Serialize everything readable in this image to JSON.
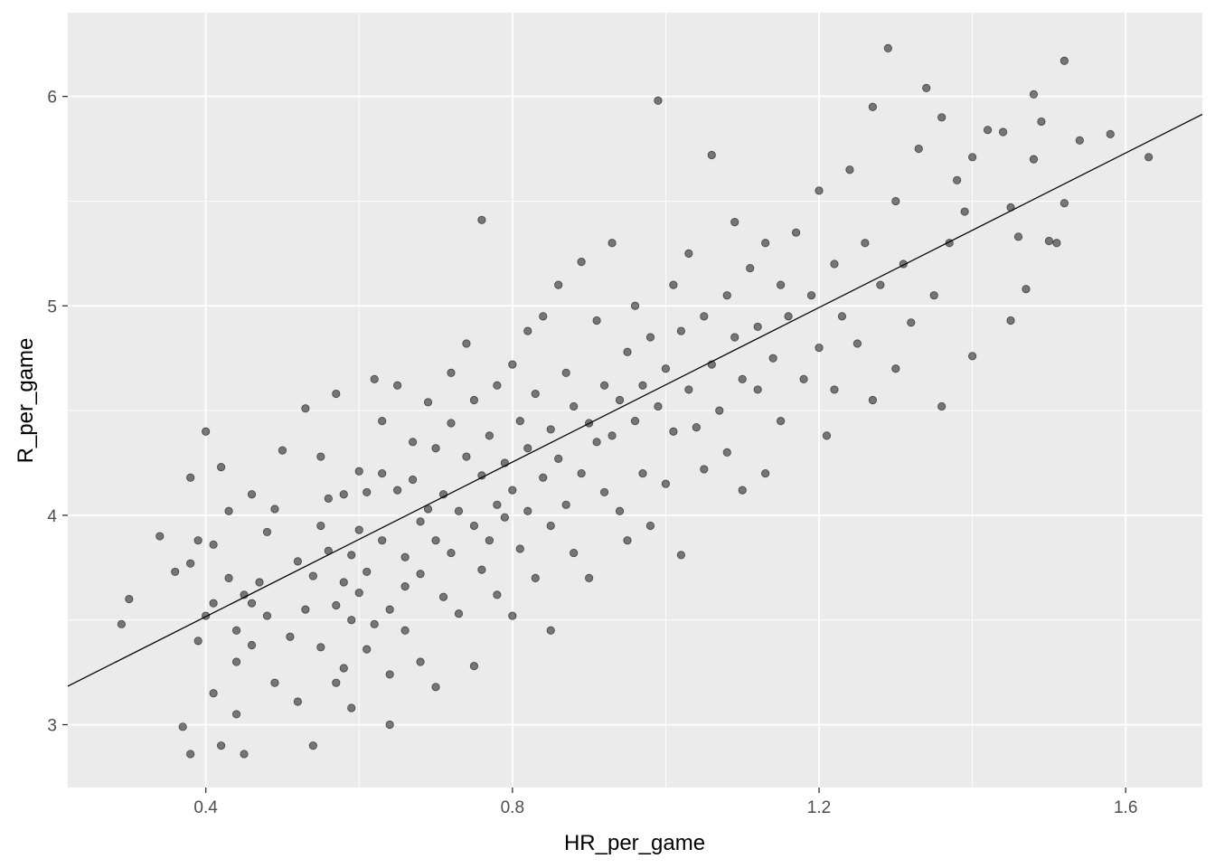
{
  "chart_data": {
    "type": "scatter",
    "title": "",
    "xlabel": "HR_per_game",
    "ylabel": "R_per_game",
    "xlim": [
      0.22,
      1.7
    ],
    "ylim": [
      2.7,
      6.4
    ],
    "x_ticks": [
      0.4,
      0.8,
      1.2,
      1.6
    ],
    "x_tick_labels": [
      "0.4",
      "0.8",
      "1.2",
      "1.6"
    ],
    "y_ticks": [
      3,
      4,
      5,
      6
    ],
    "y_tick_labels": [
      "3",
      "4",
      "5",
      "6"
    ],
    "grid": true,
    "legend": "none",
    "colors": {
      "panel_background": "#EBEBEB",
      "grid": "#FFFFFF",
      "point_fill": "#000000",
      "point_opacity": 0.5,
      "regression_line": "#000000"
    },
    "regression_line": {
      "intercept": 2.778,
      "slope": 1.845
    },
    "series": [
      {
        "points": [
          [
            0.29,
            3.48
          ],
          [
            0.3,
            3.6
          ],
          [
            0.34,
            3.9
          ],
          [
            0.36,
            3.73
          ],
          [
            0.37,
            2.99
          ],
          [
            0.38,
            3.77
          ],
          [
            0.38,
            4.18
          ],
          [
            0.38,
            2.86
          ],
          [
            0.39,
            3.88
          ],
          [
            0.39,
            3.4
          ],
          [
            0.4,
            3.52
          ],
          [
            0.4,
            4.4
          ],
          [
            0.41,
            3.86
          ],
          [
            0.41,
            3.58
          ],
          [
            0.41,
            3.15
          ],
          [
            0.42,
            4.23
          ],
          [
            0.42,
            2.9
          ],
          [
            0.43,
            4.02
          ],
          [
            0.43,
            3.7
          ],
          [
            0.44,
            3.45
          ],
          [
            0.44,
            3.3
          ],
          [
            0.44,
            3.05
          ],
          [
            0.45,
            3.62
          ],
          [
            0.45,
            2.86
          ],
          [
            0.46,
            4.1
          ],
          [
            0.46,
            3.58
          ],
          [
            0.46,
            3.38
          ],
          [
            0.47,
            3.68
          ],
          [
            0.48,
            3.52
          ],
          [
            0.48,
            3.92
          ],
          [
            0.49,
            4.03
          ],
          [
            0.49,
            3.2
          ],
          [
            0.5,
            4.31
          ],
          [
            0.51,
            3.42
          ],
          [
            0.52,
            3.78
          ],
          [
            0.52,
            3.11
          ],
          [
            0.53,
            4.51
          ],
          [
            0.53,
            3.55
          ],
          [
            0.54,
            3.71
          ],
          [
            0.54,
            2.9
          ],
          [
            0.55,
            4.28
          ],
          [
            0.55,
            3.95
          ],
          [
            0.55,
            3.37
          ],
          [
            0.56,
            4.08
          ],
          [
            0.56,
            3.83
          ],
          [
            0.57,
            3.57
          ],
          [
            0.57,
            4.58
          ],
          [
            0.57,
            3.2
          ],
          [
            0.58,
            4.1
          ],
          [
            0.58,
            3.68
          ],
          [
            0.58,
            3.27
          ],
          [
            0.59,
            3.81
          ],
          [
            0.59,
            3.5
          ],
          [
            0.59,
            3.08
          ],
          [
            0.6,
            4.21
          ],
          [
            0.6,
            3.93
          ],
          [
            0.6,
            3.63
          ],
          [
            0.61,
            4.11
          ],
          [
            0.61,
            3.73
          ],
          [
            0.61,
            3.36
          ],
          [
            0.62,
            4.65
          ],
          [
            0.62,
            3.48
          ],
          [
            0.63,
            4.45
          ],
          [
            0.63,
            4.2
          ],
          [
            0.63,
            3.88
          ],
          [
            0.64,
            3.55
          ],
          [
            0.64,
            3.24
          ],
          [
            0.64,
            3.0
          ],
          [
            0.65,
            4.62
          ],
          [
            0.65,
            4.12
          ],
          [
            0.66,
            3.8
          ],
          [
            0.66,
            3.66
          ],
          [
            0.66,
            3.45
          ],
          [
            0.67,
            4.35
          ],
          [
            0.67,
            4.17
          ],
          [
            0.68,
            3.97
          ],
          [
            0.68,
            3.72
          ],
          [
            0.68,
            3.3
          ],
          [
            0.69,
            4.54
          ],
          [
            0.69,
            4.03
          ],
          [
            0.7,
            4.32
          ],
          [
            0.7,
            3.88
          ],
          [
            0.7,
            3.18
          ],
          [
            0.71,
            4.1
          ],
          [
            0.71,
            3.61
          ],
          [
            0.72,
            4.44
          ],
          [
            0.72,
            4.68
          ],
          [
            0.72,
            3.82
          ],
          [
            0.73,
            4.02
          ],
          [
            0.73,
            3.53
          ],
          [
            0.74,
            4.28
          ],
          [
            0.74,
            4.82
          ],
          [
            0.75,
            4.55
          ],
          [
            0.75,
            3.95
          ],
          [
            0.75,
            3.28
          ],
          [
            0.76,
            4.19
          ],
          [
            0.76,
            3.74
          ],
          [
            0.76,
            5.41
          ],
          [
            0.77,
            4.38
          ],
          [
            0.77,
            3.88
          ],
          [
            0.78,
            4.62
          ],
          [
            0.78,
            4.05
          ],
          [
            0.78,
            3.62
          ],
          [
            0.79,
            4.25
          ],
          [
            0.79,
            3.99
          ],
          [
            0.8,
            4.72
          ],
          [
            0.8,
            4.12
          ],
          [
            0.8,
            3.52
          ],
          [
            0.81,
            4.45
          ],
          [
            0.81,
            3.84
          ],
          [
            0.82,
            4.32
          ],
          [
            0.82,
            4.02
          ],
          [
            0.82,
            4.88
          ],
          [
            0.83,
            4.58
          ],
          [
            0.83,
            3.7
          ],
          [
            0.84,
            4.18
          ],
          [
            0.84,
            4.95
          ],
          [
            0.85,
            4.41
          ],
          [
            0.85,
            3.95
          ],
          [
            0.85,
            3.45
          ],
          [
            0.86,
            4.27
          ],
          [
            0.86,
            5.1
          ],
          [
            0.87,
            4.68
          ],
          [
            0.87,
            4.05
          ],
          [
            0.88,
            4.52
          ],
          [
            0.88,
            3.82
          ],
          [
            0.89,
            4.2
          ],
          [
            0.89,
            5.21
          ],
          [
            0.9,
            4.44
          ],
          [
            0.9,
            3.7
          ],
          [
            0.91,
            4.35
          ],
          [
            0.91,
            4.93
          ],
          [
            0.92,
            4.11
          ],
          [
            0.92,
            4.62
          ],
          [
            0.93,
            4.38
          ],
          [
            0.93,
            5.3
          ],
          [
            0.94,
            4.55
          ],
          [
            0.94,
            4.02
          ],
          [
            0.95,
            4.78
          ],
          [
            0.95,
            3.88
          ],
          [
            0.96,
            4.45
          ],
          [
            0.96,
            5.0
          ],
          [
            0.97,
            4.62
          ],
          [
            0.97,
            4.2
          ],
          [
            0.98,
            4.85
          ],
          [
            0.98,
            3.95
          ],
          [
            0.99,
            4.52
          ],
          [
            0.99,
            5.98
          ],
          [
            1.0,
            4.7
          ],
          [
            1.0,
            4.15
          ],
          [
            1.01,
            5.1
          ],
          [
            1.01,
            4.4
          ],
          [
            1.02,
            4.88
          ],
          [
            1.02,
            3.81
          ],
          [
            1.03,
            4.6
          ],
          [
            1.03,
            5.25
          ],
          [
            1.04,
            4.42
          ],
          [
            1.05,
            4.95
          ],
          [
            1.05,
            4.22
          ],
          [
            1.06,
            4.72
          ],
          [
            1.06,
            5.72
          ],
          [
            1.07,
            4.5
          ],
          [
            1.08,
            5.05
          ],
          [
            1.08,
            4.3
          ],
          [
            1.09,
            4.85
          ],
          [
            1.09,
            5.4
          ],
          [
            1.1,
            4.65
          ],
          [
            1.1,
            4.12
          ],
          [
            1.11,
            5.18
          ],
          [
            1.12,
            4.6
          ],
          [
            1.12,
            4.9
          ],
          [
            1.13,
            5.3
          ],
          [
            1.13,
            4.2
          ],
          [
            1.14,
            4.75
          ],
          [
            1.15,
            5.1
          ],
          [
            1.15,
            4.45
          ],
          [
            1.16,
            4.95
          ],
          [
            1.17,
            5.35
          ],
          [
            1.18,
            4.65
          ],
          [
            1.19,
            5.05
          ],
          [
            1.2,
            4.8
          ],
          [
            1.2,
            5.55
          ],
          [
            1.21,
            4.38
          ],
          [
            1.22,
            5.2
          ],
          [
            1.22,
            4.6
          ],
          [
            1.23,
            4.95
          ],
          [
            1.24,
            5.65
          ],
          [
            1.25,
            4.82
          ],
          [
            1.26,
            5.3
          ],
          [
            1.27,
            4.55
          ],
          [
            1.27,
            5.95
          ],
          [
            1.28,
            5.1
          ],
          [
            1.29,
            6.23
          ],
          [
            1.3,
            4.7
          ],
          [
            1.3,
            5.5
          ],
          [
            1.31,
            5.2
          ],
          [
            1.32,
            4.92
          ],
          [
            1.33,
            5.75
          ],
          [
            1.34,
            6.04
          ],
          [
            1.35,
            5.05
          ],
          [
            1.36,
            5.9
          ],
          [
            1.36,
            4.52
          ],
          [
            1.37,
            5.3
          ],
          [
            1.38,
            5.6
          ],
          [
            1.39,
            5.45
          ],
          [
            1.4,
            4.76
          ],
          [
            1.4,
            5.71
          ],
          [
            1.42,
            5.84
          ],
          [
            1.44,
            5.83
          ],
          [
            1.45,
            4.93
          ],
          [
            1.45,
            5.47
          ],
          [
            1.46,
            5.33
          ],
          [
            1.47,
            5.08
          ],
          [
            1.48,
            5.7
          ],
          [
            1.48,
            6.01
          ],
          [
            1.49,
            5.88
          ],
          [
            1.5,
            5.31
          ],
          [
            1.51,
            5.3
          ],
          [
            1.52,
            5.49
          ],
          [
            1.52,
            6.17
          ],
          [
            1.54,
            5.79
          ],
          [
            1.58,
            5.82
          ],
          [
            1.63,
            5.71
          ]
        ]
      }
    ]
  }
}
